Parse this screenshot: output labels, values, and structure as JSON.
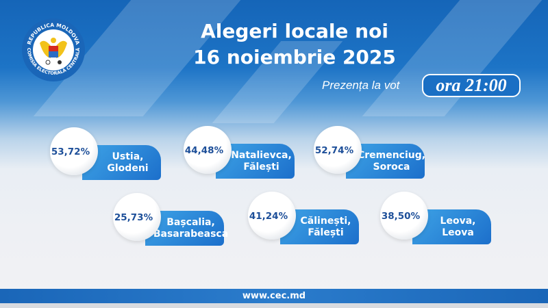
{
  "logo": {
    "top_text": "REPUBLICA MOLDOVA",
    "bottom_text": "COMISIA ELECTORALĂ CENTRALĂ"
  },
  "header": {
    "title_line1": "Alegeri locale noi",
    "title_line2": "16 noiembrie 2025",
    "subtitle": "Prezența la vot",
    "time": "ora 21:00"
  },
  "cards": [
    {
      "percent": "53,72%",
      "place_line1": "Ustia,",
      "place_line2": "Glodeni"
    },
    {
      "percent": "44,48%",
      "place_line1": "Natalievca,",
      "place_line2": "Fălești"
    },
    {
      "percent": "52,74%",
      "place_line1": "Cremenciug,",
      "place_line2": "Soroca"
    },
    {
      "percent": "25,73%",
      "place_line1": "Bașcalia,",
      "place_line2": "Basarabeasca"
    },
    {
      "percent": "41,24%",
      "place_line1": "Călinești,",
      "place_line2": "Fălești"
    },
    {
      "percent": "38,50%",
      "place_line1": "Leova,",
      "place_line2": "Leova"
    }
  ],
  "footer": {
    "url": "www.cec.md"
  },
  "colors": {
    "brand_blue": "#1a6fc4",
    "percent_text": "#1d4f99"
  }
}
